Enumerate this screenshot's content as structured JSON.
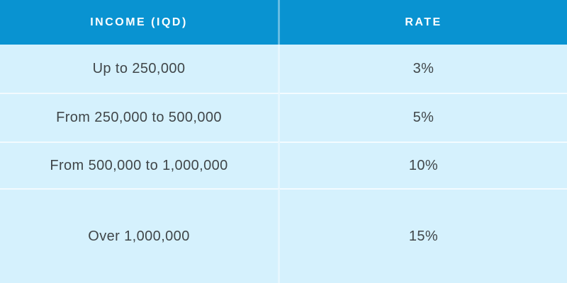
{
  "chart_data": {
    "type": "table",
    "columns": [
      "INCOME (IQD)",
      "RATE"
    ],
    "rows": [
      [
        "Up to 250,000",
        "3%"
      ],
      [
        "From 250,000 to 500,000",
        "5%"
      ],
      [
        "From 500,000 to 1,000,000",
        "10%"
      ],
      [
        "Over 1,000,000",
        "15%"
      ]
    ]
  },
  "colors": {
    "header_bg": "#0993d1",
    "header_text": "#ffffff",
    "row_bg": "#d5f1fd",
    "body_text": "#404649",
    "divider": "#e9f8fe"
  }
}
